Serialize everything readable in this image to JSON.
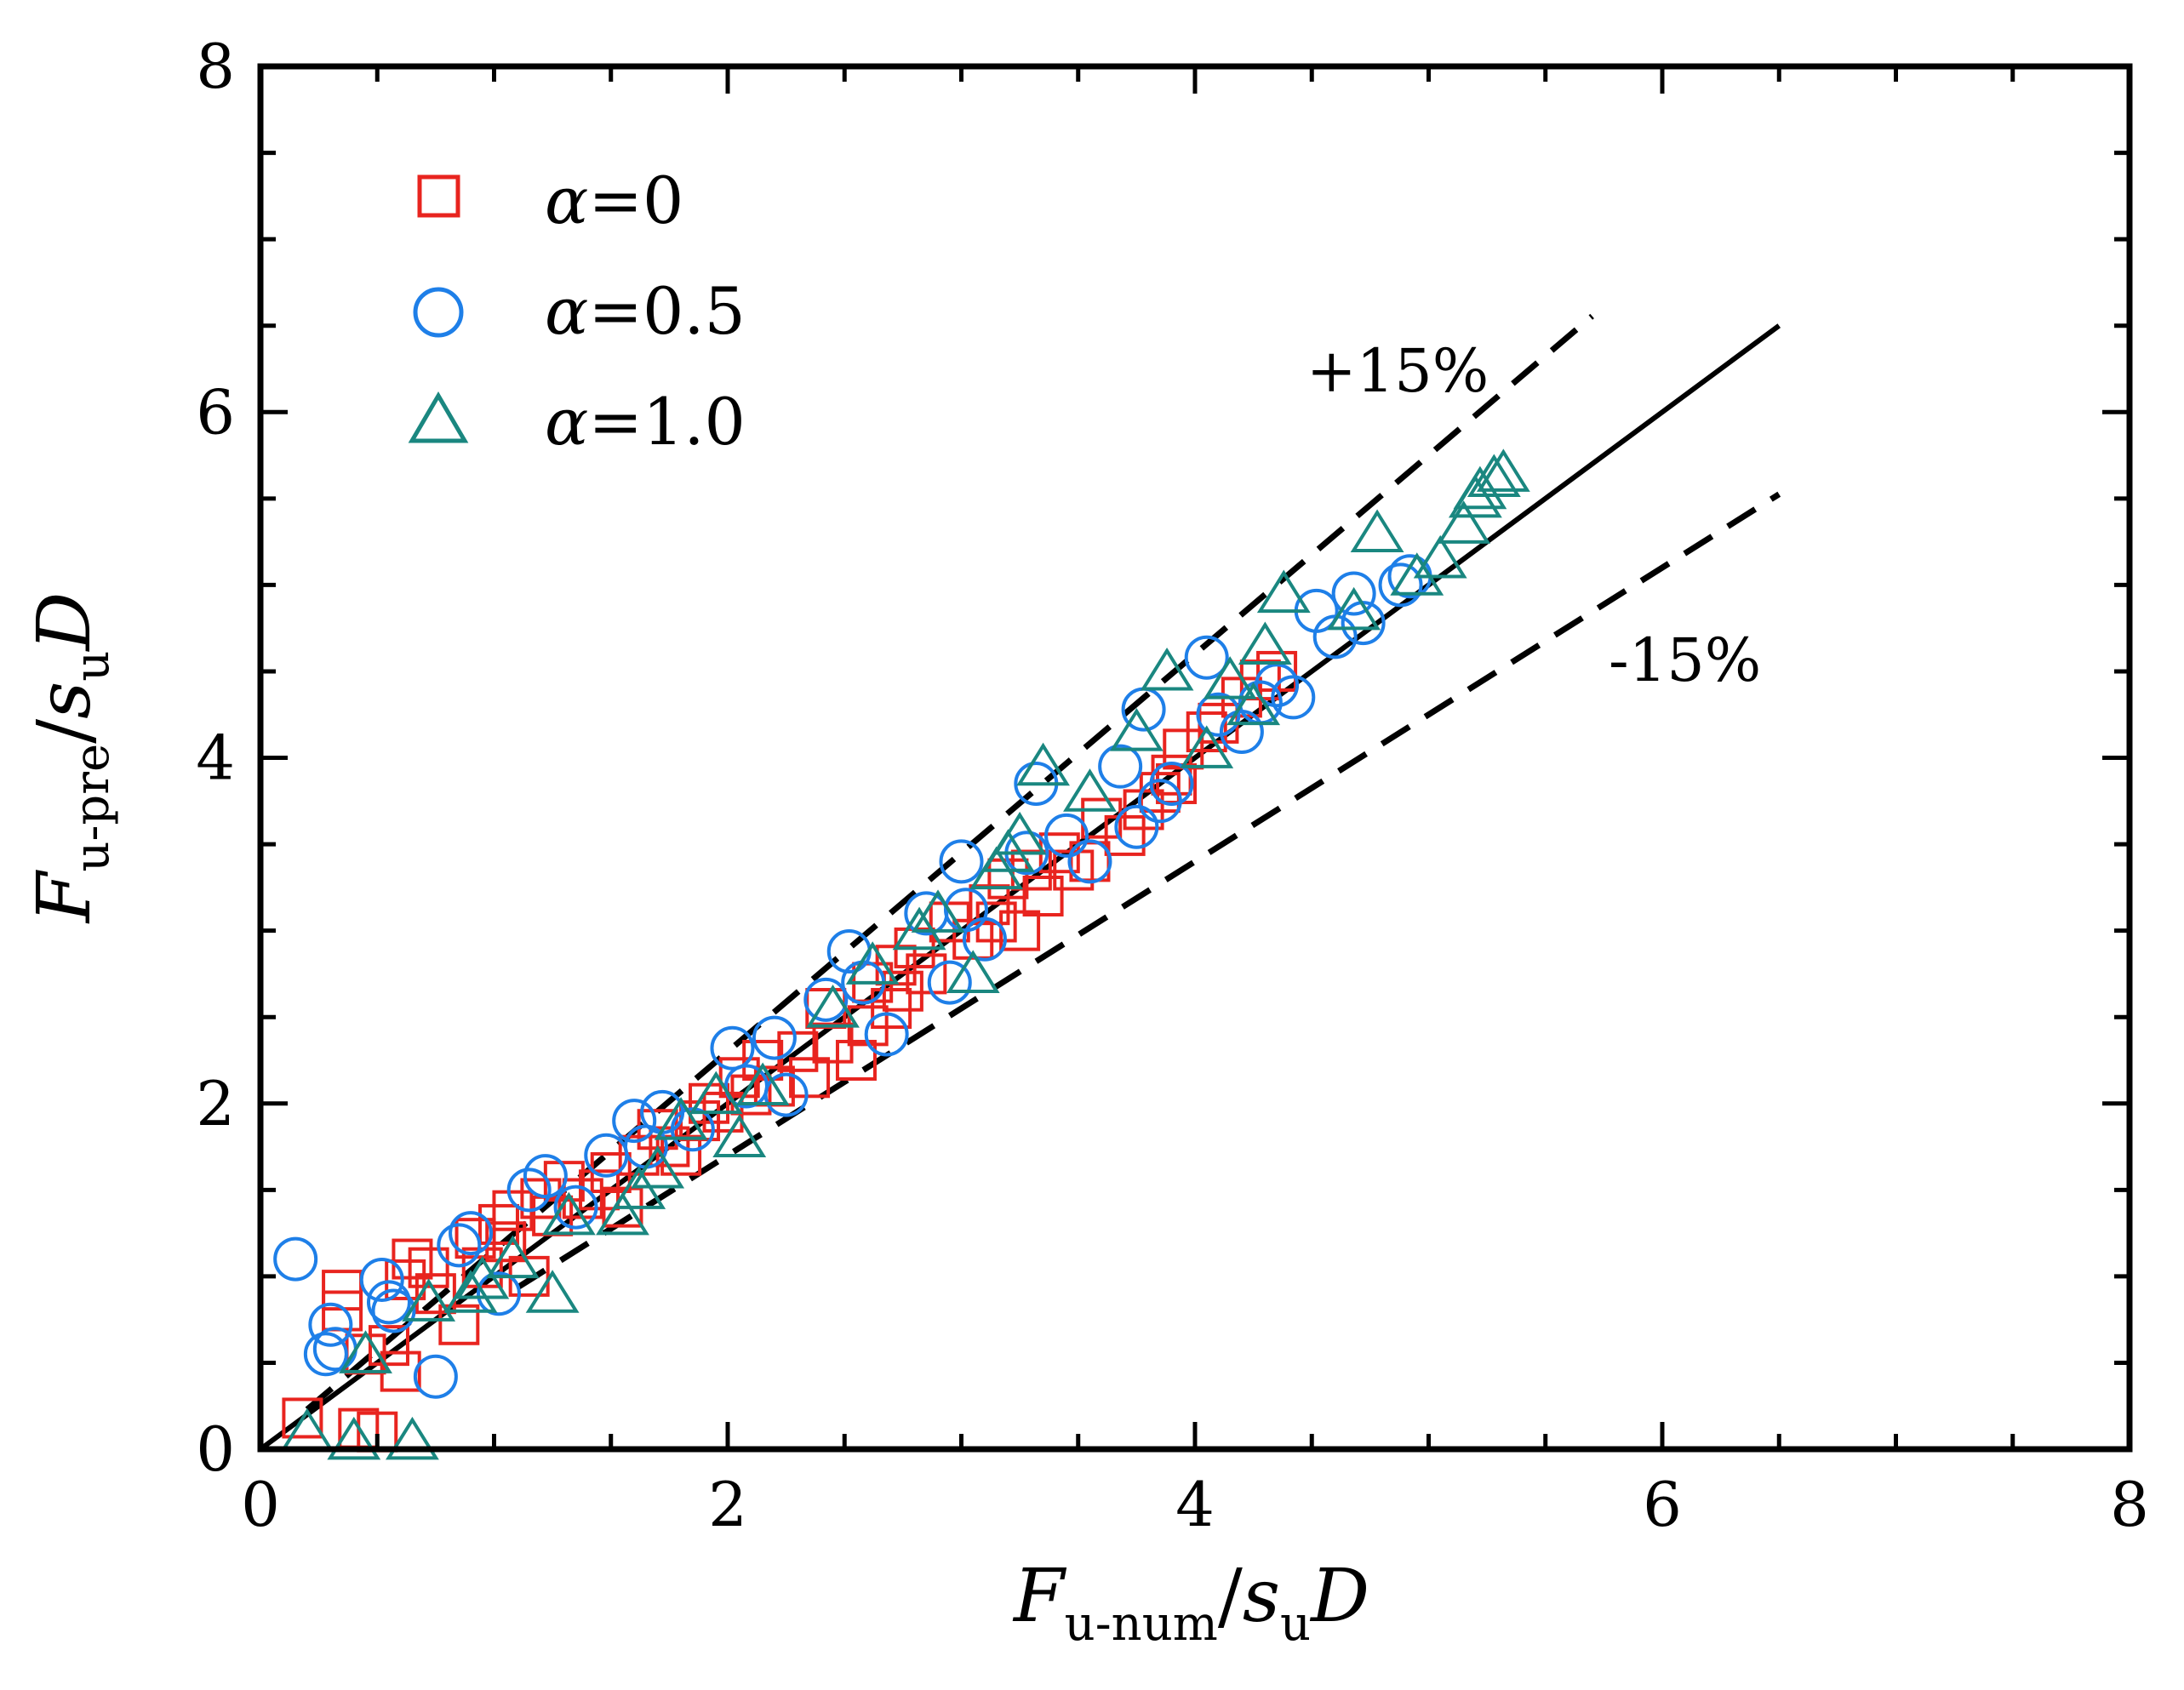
{
  "chart_data": {
    "type": "scatter",
    "x_axis": {
      "label_main": "F",
      "label_sub": "u-num",
      "label_slash": "/",
      "label_s": "s",
      "label_s_sub": "u",
      "label_tail": "D",
      "range": [
        0,
        8
      ],
      "ticks": [
        "0",
        "2",
        "4",
        "6",
        "8"
      ]
    },
    "y_axis": {
      "label_main": "F",
      "label_sub": "u-pre",
      "label_slash": "/",
      "label_s": "s",
      "label_s_sub": "u",
      "label_tail": "D",
      "range": [
        0,
        8
      ],
      "ticks": [
        "0",
        "2",
        "4",
        "6",
        "8"
      ]
    },
    "reference_lines": [
      {
        "name": "1:1",
        "style": "solid",
        "slope": 1.0,
        "x_range": [
          0,
          6.5
        ]
      },
      {
        "name": "+15%",
        "label": "+15%",
        "style": "dashed",
        "slope": 1.15,
        "x_range": [
          0.2,
          5.7
        ]
      },
      {
        "name": "-15%",
        "label": "-15%",
        "style": "dashed",
        "slope": 0.85,
        "x_range": [
          1.1,
          6.5
        ]
      }
    ],
    "series": [
      {
        "name": "alpha=0",
        "legend_symbol": "α",
        "legend_value": "=0",
        "marker": "square",
        "color": "#e8241f",
        "points": [
          [
            0.18,
            0.18
          ],
          [
            0.35,
            0.92
          ],
          [
            0.35,
            0.8
          ],
          [
            0.42,
            0.12
          ],
          [
            0.45,
            0.55
          ],
          [
            0.5,
            0.1
          ],
          [
            0.55,
            0.6
          ],
          [
            0.6,
            0.45
          ],
          [
            0.62,
            0.98
          ],
          [
            0.65,
            1.1
          ],
          [
            0.72,
            1.05
          ],
          [
            0.75,
            0.9
          ],
          [
            0.85,
            0.72
          ],
          [
            0.92,
            1.22
          ],
          [
            0.95,
            1.05
          ],
          [
            1.02,
            1.3
          ],
          [
            1.05,
            1.2
          ],
          [
            1.08,
            1.38
          ],
          [
            1.15,
            1.0
          ],
          [
            1.2,
            1.45
          ],
          [
            1.25,
            1.35
          ],
          [
            1.3,
            1.55
          ],
          [
            1.38,
            1.45
          ],
          [
            1.45,
            1.5
          ],
          [
            1.5,
            1.6
          ],
          [
            1.55,
            1.4
          ],
          [
            1.62,
            1.7
          ],
          [
            1.7,
            1.85
          ],
          [
            1.75,
            1.75
          ],
          [
            1.8,
            1.7
          ],
          [
            1.88,
            1.9
          ],
          [
            1.92,
            2.0
          ],
          [
            1.98,
            1.95
          ],
          [
            2.05,
            2.15
          ],
          [
            2.1,
            2.05
          ],
          [
            2.15,
            2.25
          ],
          [
            2.2,
            2.1
          ],
          [
            2.3,
            2.3
          ],
          [
            2.35,
            2.15
          ],
          [
            2.42,
            2.55
          ],
          [
            2.45,
            2.35
          ],
          [
            2.55,
            2.25
          ],
          [
            2.6,
            2.45
          ],
          [
            2.62,
            2.7
          ],
          [
            2.7,
            2.55
          ],
          [
            2.72,
            2.8
          ],
          [
            2.75,
            2.65
          ],
          [
            2.8,
            2.9
          ],
          [
            2.85,
            2.75
          ],
          [
            2.95,
            3.05
          ],
          [
            3.05,
            2.95
          ],
          [
            3.12,
            3.15
          ],
          [
            3.15,
            3.05
          ],
          [
            3.2,
            3.3
          ],
          [
            3.25,
            3.0
          ],
          [
            3.3,
            3.35
          ],
          [
            3.35,
            3.2
          ],
          [
            3.42,
            3.45
          ],
          [
            3.48,
            3.35
          ],
          [
            3.55,
            3.4
          ],
          [
            3.6,
            3.65
          ],
          [
            3.7,
            3.55
          ],
          [
            3.78,
            3.7
          ],
          [
            3.85,
            3.8
          ],
          [
            3.9,
            3.9
          ],
          [
            3.95,
            4.05
          ],
          [
            4.05,
            4.15
          ],
          [
            4.1,
            4.2
          ],
          [
            4.2,
            4.35
          ],
          [
            4.28,
            4.45
          ],
          [
            4.35,
            4.5
          ],
          [
            3.92,
            3.85
          ]
        ]
      },
      {
        "name": "alpha=0.5",
        "legend_symbol": "α",
        "legend_value": "=0.5",
        "marker": "circle",
        "color": "#1e7fe8",
        "points": [
          [
            0.15,
            1.1
          ],
          [
            0.28,
            0.55
          ],
          [
            0.3,
            0.72
          ],
          [
            0.32,
            0.58
          ],
          [
            0.52,
            0.98
          ],
          [
            0.55,
            0.85
          ],
          [
            0.57,
            0.8
          ],
          [
            0.75,
            0.42
          ],
          [
            0.85,
            1.18
          ],
          [
            0.9,
            1.25
          ],
          [
            1.02,
            0.9
          ],
          [
            1.15,
            1.5
          ],
          [
            1.22,
            1.58
          ],
          [
            1.35,
            1.4
          ],
          [
            1.48,
            1.7
          ],
          [
            1.6,
            1.9
          ],
          [
            1.65,
            1.75
          ],
          [
            1.72,
            1.95
          ],
          [
            1.85,
            1.85
          ],
          [
            2.02,
            2.32
          ],
          [
            2.08,
            2.1
          ],
          [
            2.2,
            2.38
          ],
          [
            2.25,
            2.05
          ],
          [
            2.42,
            2.6
          ],
          [
            2.52,
            2.88
          ],
          [
            2.58,
            2.7
          ],
          [
            2.68,
            2.4
          ],
          [
            2.85,
            3.1
          ],
          [
            2.95,
            2.7
          ],
          [
            3.0,
            3.4
          ],
          [
            3.02,
            3.12
          ],
          [
            3.1,
            2.95
          ],
          [
            3.28,
            3.45
          ],
          [
            3.32,
            3.85
          ],
          [
            3.45,
            3.55
          ],
          [
            3.55,
            3.4
          ],
          [
            3.68,
            3.95
          ],
          [
            3.75,
            3.6
          ],
          [
            3.78,
            4.28
          ],
          [
            3.85,
            3.75
          ],
          [
            3.9,
            3.85
          ],
          [
            4.05,
            4.58
          ],
          [
            4.1,
            4.25
          ],
          [
            4.2,
            4.15
          ],
          [
            4.28,
            4.32
          ],
          [
            4.35,
            4.42
          ],
          [
            4.42,
            4.35
          ],
          [
            4.52,
            4.85
          ],
          [
            4.6,
            4.7
          ],
          [
            4.68,
            4.95
          ],
          [
            4.72,
            4.78
          ],
          [
            4.88,
            5.0
          ],
          [
            4.92,
            5.05
          ]
        ]
      },
      {
        "name": "alpha=1.0",
        "legend_symbol": "α",
        "legend_value": "=1.0",
        "marker": "triangle",
        "color": "#1a8780",
        "points": [
          [
            0.2,
            0.1
          ],
          [
            0.4,
            0.05
          ],
          [
            0.45,
            0.55
          ],
          [
            0.65,
            0.05
          ],
          [
            0.72,
            0.85
          ],
          [
            0.9,
            0.9
          ],
          [
            0.95,
            0.98
          ],
          [
            1.08,
            1.1
          ],
          [
            1.25,
            0.9
          ],
          [
            1.32,
            1.35
          ],
          [
            1.55,
            1.35
          ],
          [
            1.62,
            1.5
          ],
          [
            1.7,
            1.62
          ],
          [
            1.8,
            1.9
          ],
          [
            1.95,
            2.05
          ],
          [
            2.05,
            1.8
          ],
          [
            2.15,
            2.1
          ],
          [
            2.45,
            2.55
          ],
          [
            2.62,
            2.8
          ],
          [
            2.82,
            3.0
          ],
          [
            2.9,
            3.1
          ],
          [
            3.05,
            2.75
          ],
          [
            3.15,
            3.35
          ],
          [
            3.2,
            3.45
          ],
          [
            3.25,
            3.55
          ],
          [
            3.35,
            3.95
          ],
          [
            3.55,
            3.8
          ],
          [
            3.75,
            4.15
          ],
          [
            3.88,
            4.5
          ],
          [
            4.05,
            4.05
          ],
          [
            4.15,
            4.45
          ],
          [
            4.25,
            4.3
          ],
          [
            4.3,
            4.65
          ],
          [
            4.38,
            4.95
          ],
          [
            4.68,
            4.85
          ],
          [
            4.78,
            5.3
          ],
          [
            4.95,
            5.05
          ],
          [
            5.05,
            5.15
          ],
          [
            5.15,
            5.35
          ],
          [
            5.22,
            5.55
          ],
          [
            5.28,
            5.62
          ],
          [
            5.32,
            5.65
          ],
          [
            5.2,
            5.5
          ]
        ]
      }
    ]
  }
}
